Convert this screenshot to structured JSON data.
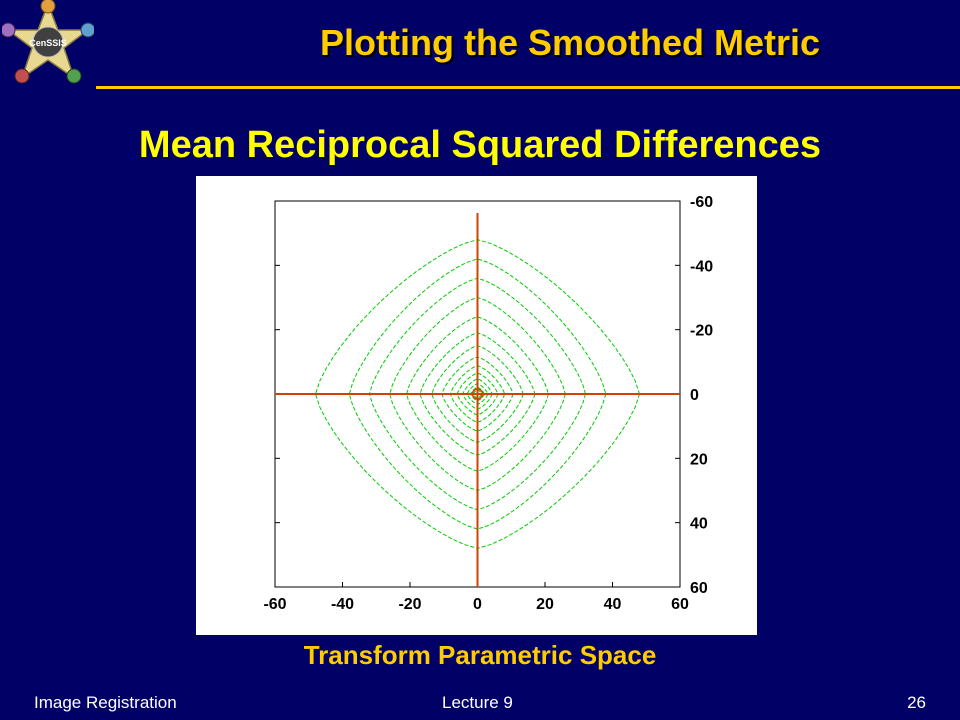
{
  "slide": {
    "title": "Plotting the Smoothed Metric",
    "subtitle": "Mean Reciprocal Squared Differences",
    "caption": "Transform Parametric Space",
    "logo_text": "CenSSIS"
  },
  "footer": {
    "left": "Image Registration",
    "center": "Lecture 9",
    "page_number": "26"
  },
  "colors": {
    "background": "#000066",
    "title": "#ffcc00",
    "subtitle": "#ffff00",
    "contour": "#00cc00",
    "crosshair": "#cc4400"
  },
  "chart_data": {
    "type": "contour",
    "title": "Mean Reciprocal Squared Differences",
    "xlabel": "Transform Parametric Space",
    "ylabel": "",
    "x_ticks": [
      "-60",
      "-40",
      "-20",
      "0",
      "20",
      "40",
      "60"
    ],
    "y_ticks": [
      "-60",
      "-40",
      "-20",
      "0",
      "20",
      "40",
      "60"
    ],
    "xlim": [
      -60,
      60
    ],
    "ylim": [
      -60,
      60
    ],
    "y_axis_side": "right",
    "y_axis_inverted": true,
    "optimum": [
      0,
      0
    ],
    "crosshair": {
      "x": 0,
      "y": 0
    },
    "contours": [
      {
        "rx": 48,
        "ry": 48
      },
      {
        "rx": 38,
        "ry": 42
      },
      {
        "rx": 32,
        "ry": 36
      },
      {
        "rx": 26,
        "ry": 30
      },
      {
        "rx": 21,
        "ry": 24
      },
      {
        "rx": 17,
        "ry": 19
      },
      {
        "rx": 13.5,
        "ry": 15
      },
      {
        "rx": 10.5,
        "ry": 11.5
      },
      {
        "rx": 8,
        "ry": 8.8
      },
      {
        "rx": 6,
        "ry": 6.5
      },
      {
        "rx": 4.3,
        "ry": 4.7
      },
      {
        "rx": 3,
        "ry": 3.2
      },
      {
        "rx": 2,
        "ry": 2.1
      },
      {
        "rx": 1.2,
        "ry": 1.3
      }
    ]
  }
}
